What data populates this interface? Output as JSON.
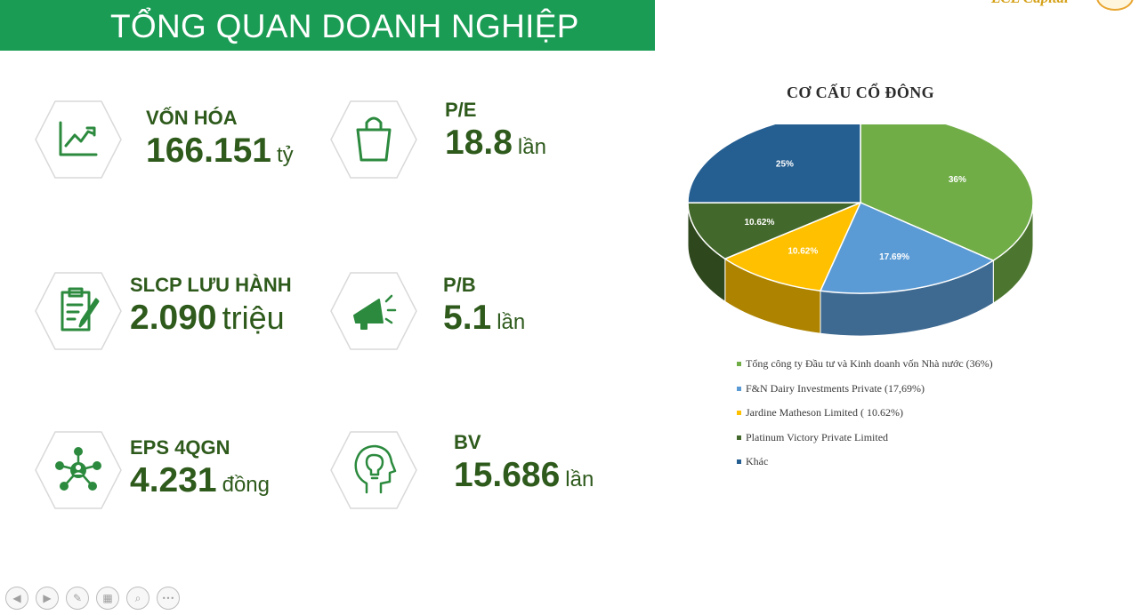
{
  "header": {
    "title": "TỔNG QUAN DOANH NGHIỆP"
  },
  "brand": {
    "text": "LCL Capital"
  },
  "kpis": [
    {
      "label": "VỐN HÓA",
      "value": "166.151",
      "unit": "tỷ",
      "icon": "trend-chart-icon"
    },
    {
      "label": "P/E",
      "value": "18.8",
      "unit": "lần",
      "icon": "shopping-bag-icon"
    },
    {
      "label": "SLCP LƯU HÀNH",
      "value": "2.090",
      "unit": "triệu",
      "icon": "clipboard-pen-icon"
    },
    {
      "label": "P/B",
      "value": "5.1",
      "unit": "lần",
      "icon": "megaphone-icon"
    },
    {
      "label": "EPS 4QGN",
      "value": "4.231",
      "unit": "đồng",
      "icon": "network-person-icon"
    },
    {
      "label": "BV",
      "value": "15.686",
      "unit": "lần",
      "icon": "head-lightbulb-icon"
    }
  ],
  "chart_data": {
    "type": "pie",
    "title": "CƠ CẤU CỔ ĐÔNG",
    "slices": [
      {
        "label": "Tổng công ty Đầu tư và Kinh doanh vốn Nhà nước (36%)",
        "value": 36,
        "display": "36%",
        "color": "#70ad47"
      },
      {
        "label": "F&N Dairy Investments Private (17,69%)",
        "value": 17.69,
        "display": "17.69%",
        "color": "#5b9bd5"
      },
      {
        "label": "Jardine Matheson Limited ( 10.62%)",
        "value": 10.62,
        "display": "10.62%",
        "color": "#ffc000"
      },
      {
        "label": "Platinum Victory Private Limited",
        "value": 10.62,
        "display": "10.62%",
        "color": "#43682b"
      },
      {
        "label": "Khác",
        "value": 25,
        "display": "25%",
        "color": "#255e91"
      }
    ],
    "legend_position": "bottom"
  },
  "nav": {
    "buttons": [
      {
        "icon": "previous-icon",
        "glyph": "◀"
      },
      {
        "icon": "next-icon",
        "glyph": "▶"
      },
      {
        "icon": "pen-icon",
        "glyph": "✎"
      },
      {
        "icon": "slides-icon",
        "glyph": "▦"
      },
      {
        "icon": "zoom-icon",
        "glyph": "⌕"
      },
      {
        "icon": "more-icon",
        "glyph": "•••"
      }
    ]
  }
}
